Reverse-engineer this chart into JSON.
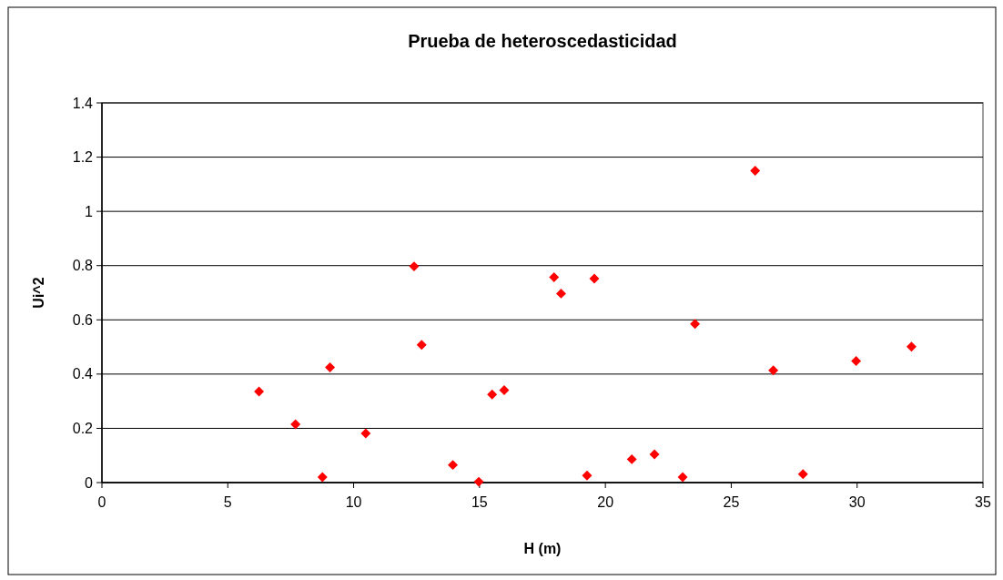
{
  "chart_data": {
    "type": "scatter",
    "title": "Prueba de heteroscedasticidad",
    "xlabel": "H (m)",
    "ylabel": "Ui^2",
    "xlim": [
      0,
      35
    ],
    "xticks": [
      0,
      5,
      10,
      15,
      20,
      25,
      30,
      35
    ],
    "ylim": [
      0,
      1.4
    ],
    "yticks": [
      0,
      0.2,
      0.4,
      0.6,
      0.8,
      1,
      1.2,
      1.4
    ],
    "grid": "y",
    "marker": "diamond",
    "series": [
      {
        "color": "#ff0000",
        "x": [
          6.24,
          7.69,
          8.76,
          9.06,
          10.48,
          12.4,
          12.7,
          13.94,
          14.97,
          15.5,
          15.98,
          17.96,
          18.24,
          19.27,
          19.56,
          21.05,
          21.95,
          23.07,
          23.56,
          25.95,
          26.67,
          27.85,
          29.96,
          32.16
        ],
        "values": [
          0.336,
          0.215,
          0.02,
          0.425,
          0.181,
          0.797,
          0.508,
          0.065,
          0.003,
          0.325,
          0.341,
          0.757,
          0.697,
          0.026,
          0.752,
          0.086,
          0.104,
          0.02,
          0.585,
          1.15,
          0.414,
          0.031,
          0.448,
          0.501
        ]
      }
    ]
  }
}
